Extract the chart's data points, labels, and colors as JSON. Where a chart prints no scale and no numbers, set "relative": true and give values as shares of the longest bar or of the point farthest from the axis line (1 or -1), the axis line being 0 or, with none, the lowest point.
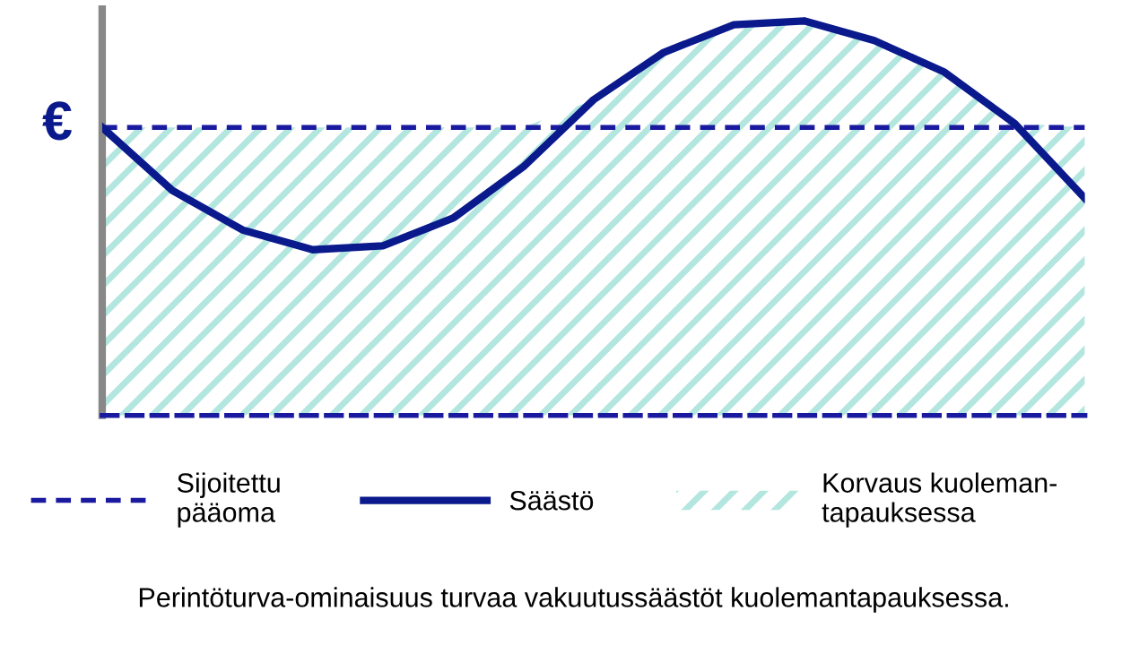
{
  "chart_data": {
    "type": "line",
    "relative": true,
    "ylabel": "€",
    "categories": [
      null,
      null,
      null,
      null,
      null,
      null,
      null,
      null,
      null,
      null,
      null,
      null,
      null,
      null,
      null
    ],
    "series": [
      {
        "name": "Sijoitettu\npääoma",
        "color": "#1a1aa0",
        "line_style": "dashed",
        "values": [
          0.73,
          0.73,
          0.73,
          0.73,
          0.73,
          0.73,
          0.73,
          0.73,
          0.73,
          0.73,
          0.73,
          0.73,
          0.73,
          0.73,
          0.73
        ]
      },
      {
        "name": "Säästö",
        "color": "#0a1a8c",
        "line_style": "solid",
        "values": [
          0.73,
          0.57,
          0.47,
          0.42,
          0.43,
          0.5,
          0.63,
          0.8,
          0.92,
          0.99,
          1,
          0.95,
          0.87,
          0.74,
          0.55
        ]
      },
      {
        "name": "Korvaus kuoleman-\ntapauksessa",
        "type": "area",
        "color": "#b3e6df",
        "values": [
          0.73,
          0.73,
          0.73,
          0.73,
          0.73,
          0.73,
          0.73,
          0.8,
          0.92,
          0.99,
          1,
          0.95,
          0.87,
          0.74,
          0.73
        ]
      }
    ],
    "legend": "bottom",
    "annotations": [
      "Perintöturva-ominaisuus turvaa vakuutussäästöt kuolemantapauksessa."
    ]
  }
}
